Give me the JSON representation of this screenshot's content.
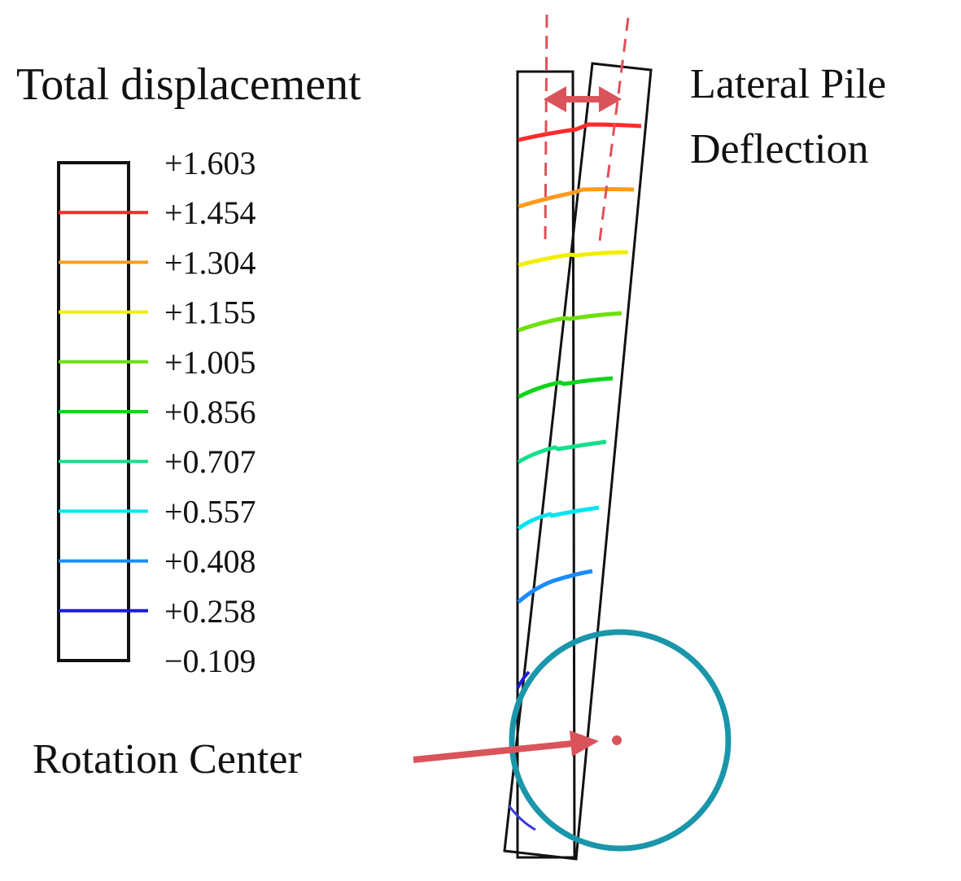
{
  "legend": {
    "title": "Total displacement",
    "entries": [
      {
        "value": "+1.603",
        "color": ""
      },
      {
        "value": "+1.454",
        "color": "#ff2a2a"
      },
      {
        "value": "+1.304",
        "color": "#ff9a1e"
      },
      {
        "value": "+1.155",
        "color": "#f2ee00"
      },
      {
        "value": "+1.005",
        "color": "#6ee00e"
      },
      {
        "value": "+0.856",
        "color": "#0ed41a"
      },
      {
        "value": "+0.707",
        "color": "#12e08a"
      },
      {
        "value": "+0.557",
        "color": "#00e6ee"
      },
      {
        "value": "+0.408",
        "color": "#1a8cff"
      },
      {
        "value": "+0.258",
        "color": "#1a1adc"
      },
      {
        "value": "−0.109",
        "color": ""
      }
    ]
  },
  "annotations": {
    "deflection_line1": "Lateral Pile",
    "deflection_line2": "Deflection",
    "rotation_center": "Rotation Center"
  },
  "colors": {
    "outline": "#111111",
    "arrow": "#d9545a",
    "dashed": "#e05058",
    "circle": "#1a96aa"
  }
}
